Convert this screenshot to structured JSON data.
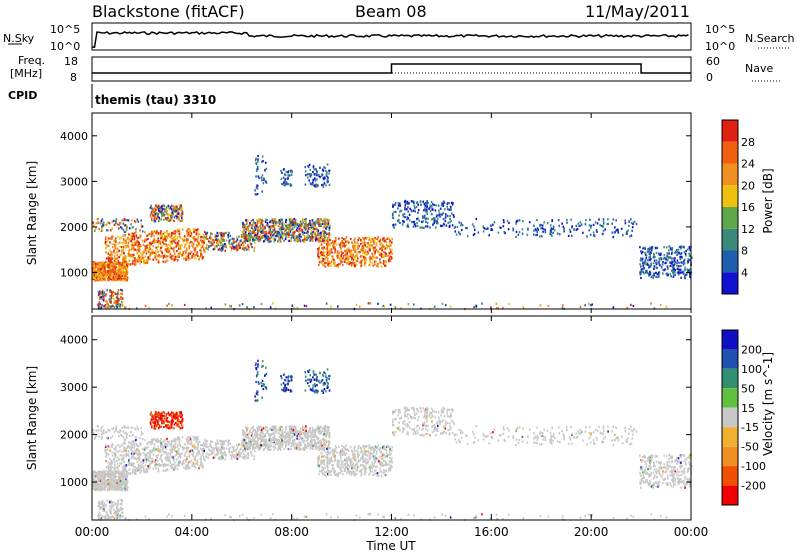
{
  "header": {
    "station": "Blackstone (fitACF)",
    "beam": "Beam 08",
    "date": "11/May/2011"
  },
  "strip1": {
    "left_label": "N.Sky",
    "left_ticks": [
      "10^5",
      "10^0"
    ],
    "right_ticks": [
      "10^5",
      "10^0"
    ],
    "right_label": "N.Search"
  },
  "strip2": {
    "left_label_1": "Freq.",
    "left_label_2": "[MHz]",
    "left_ticks": [
      "18",
      "8"
    ],
    "right_ticks": [
      "60",
      "0"
    ],
    "right_label": "Nave"
  },
  "cpid": {
    "label": "CPID",
    "text": "themis (tau) 3310"
  },
  "colors": {
    "power_scale": [
      "#1010d0",
      "#1f5fb0",
      "#3a8a7a",
      "#5fa84a",
      "#f0c010",
      "#f09020",
      "#f06010",
      "#e02010"
    ],
    "velocity_scale": [
      "#f00000",
      "#f05000",
      "#f09020",
      "#f0b030",
      "#c8c8c8",
      "#60c040",
      "#309070",
      "#2050b0",
      "#1010c0"
    ]
  },
  "chart_data": [
    {
      "type": "heatmap",
      "name": "power",
      "ylabel": "Slant Range [km]",
      "yticks": [
        "1000",
        "2000",
        "3000",
        "4000"
      ],
      "ylim": [
        200,
        4500
      ],
      "xlim": [
        0,
        24
      ],
      "colorbar_label": "Power [dB]",
      "colorbar_ticks": [
        "4",
        "8",
        "12",
        "16",
        "20",
        "24",
        "28"
      ]
    },
    {
      "type": "heatmap",
      "name": "velocity",
      "ylabel": "Slant Range [km]",
      "yticks": [
        "1000",
        "2000",
        "3000",
        "4000"
      ],
      "ylim": [
        200,
        4500
      ],
      "xlim": [
        0,
        24
      ],
      "colorbar_label": "Velocity [m s^-1]",
      "colorbar_ticks": [
        "200",
        "100",
        "50",
        "15",
        "-15",
        "-50",
        "-100",
        "-200"
      ],
      "xlabel": "Time UT",
      "xticks": [
        "00:00",
        "04:00",
        "08:00",
        "12:00",
        "16:00",
        "20:00",
        "00:00"
      ]
    }
  ]
}
